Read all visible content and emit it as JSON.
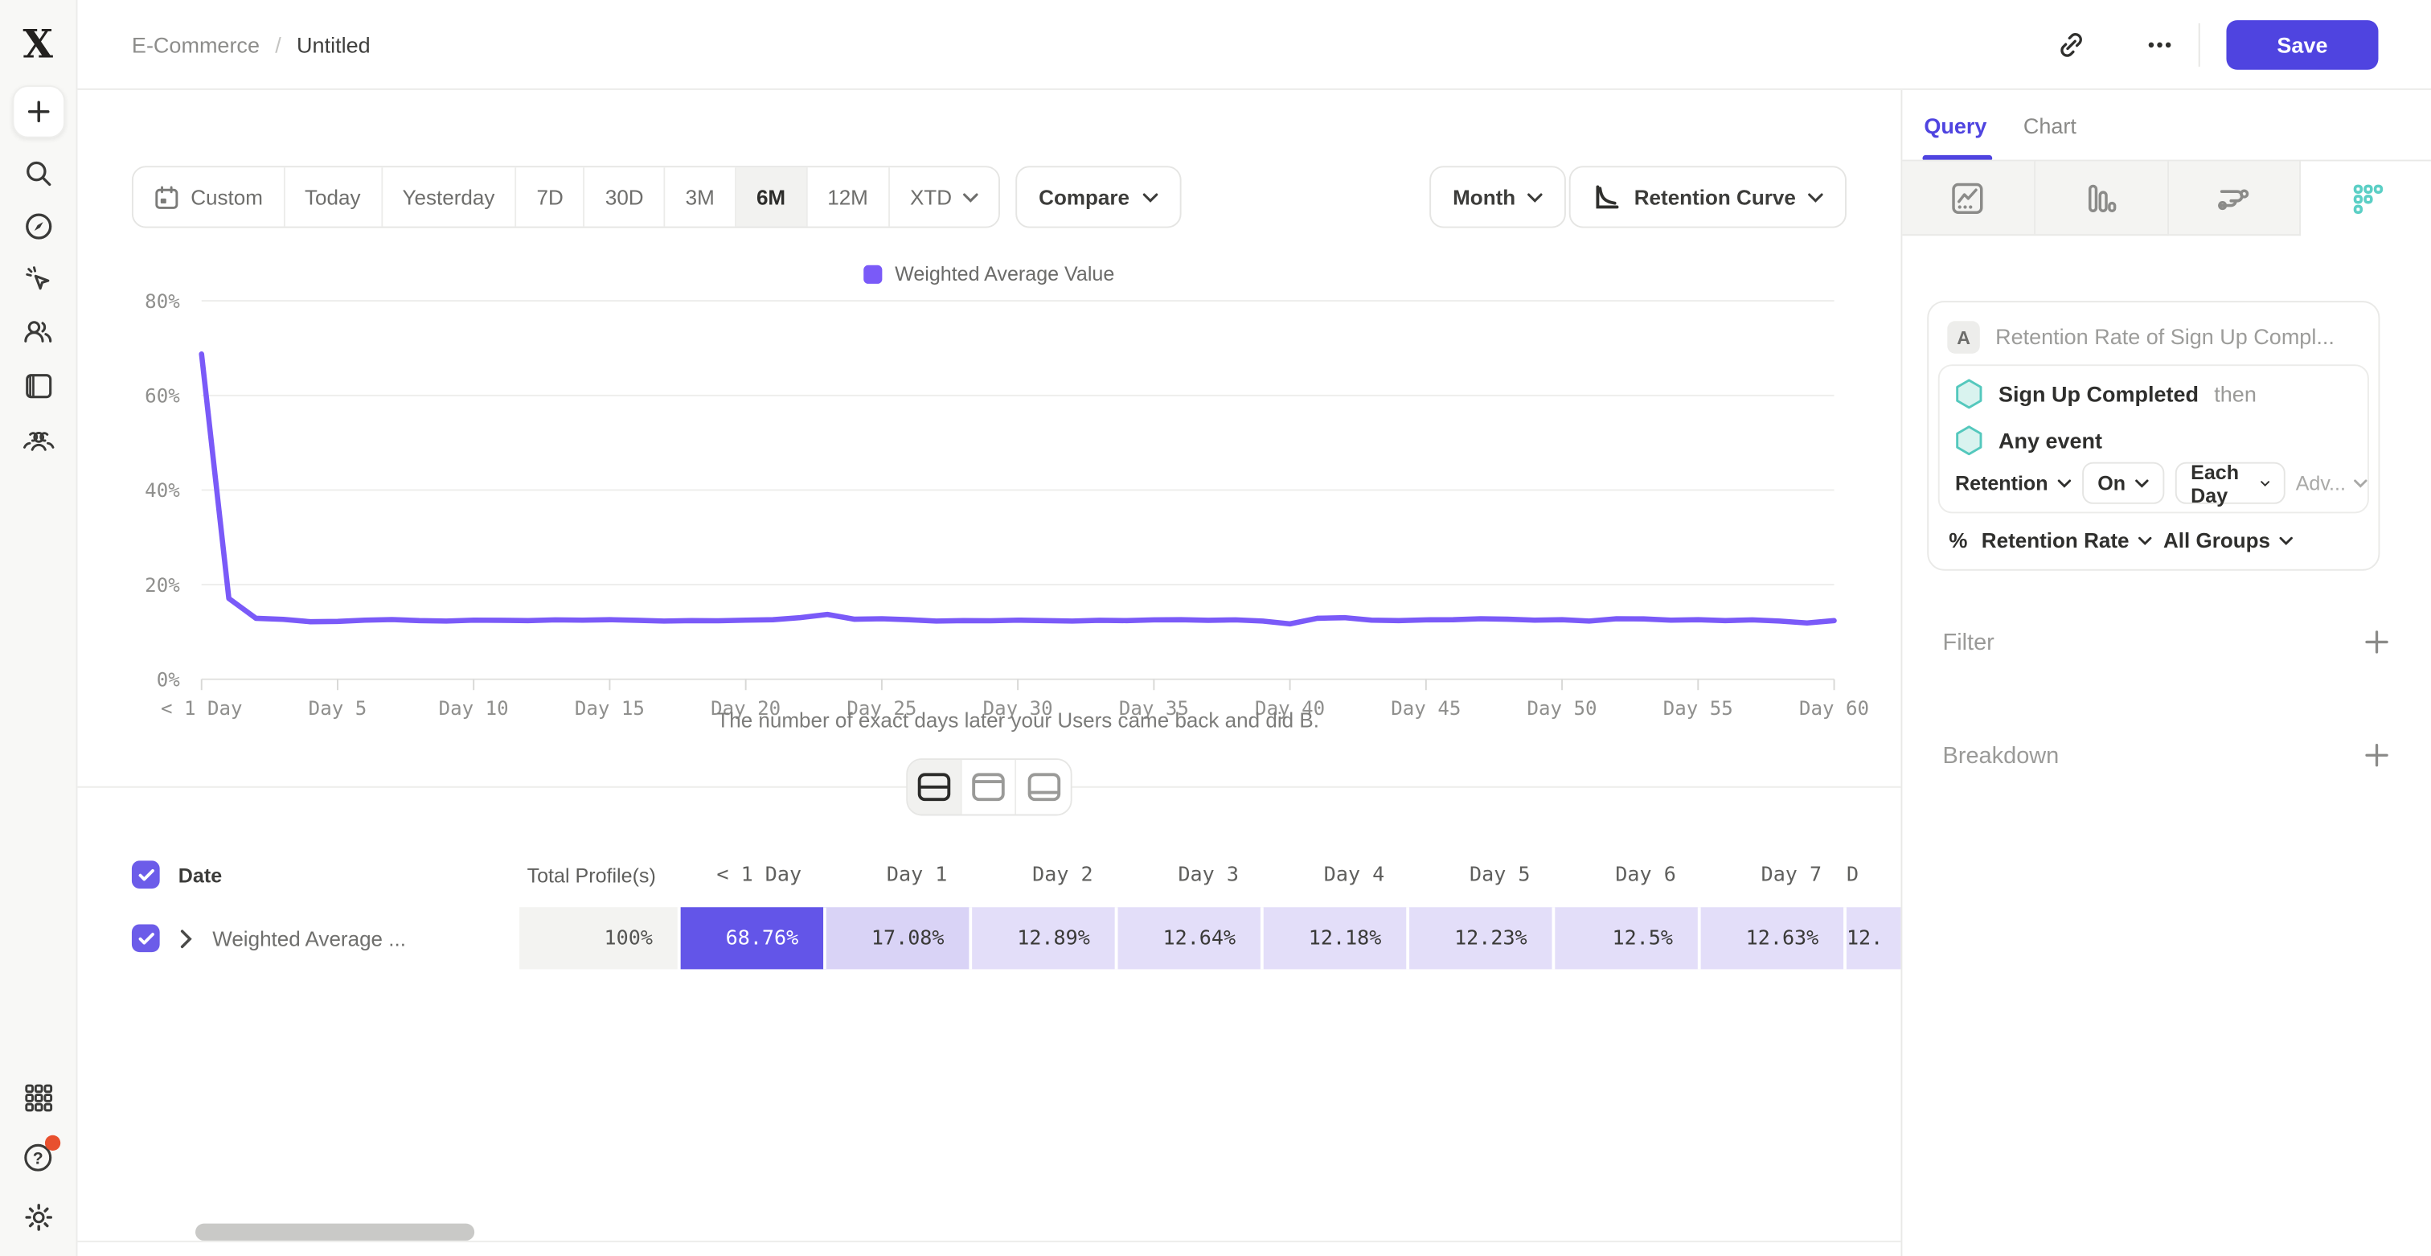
{
  "breadcrumb": {
    "project": "E-Commerce",
    "separator": "/",
    "page": "Untitled"
  },
  "topbar": {
    "save_label": "Save"
  },
  "sidebar": {
    "icons": [
      "mixpanel-logo",
      "create-plus",
      "search",
      "discover-compass",
      "events-cursor",
      "users",
      "boards",
      "cohorts-group",
      "apps-grid",
      "help",
      "settings-gear"
    ]
  },
  "toolbar": {
    "ranges": [
      {
        "label": "Custom"
      },
      {
        "label": "Today"
      },
      {
        "label": "Yesterday"
      },
      {
        "label": "7D"
      },
      {
        "label": "30D"
      },
      {
        "label": "3M"
      },
      {
        "label": "6M",
        "selected": true
      },
      {
        "label": "12M"
      },
      {
        "label": "XTD"
      }
    ],
    "compare_label": "Compare",
    "granularity_label": "Month",
    "chart_type_label": "Retention Curve"
  },
  "chart_data": {
    "type": "line",
    "legend": [
      {
        "label": "Weighted Average Value",
        "color": "#7a5af8"
      }
    ],
    "ylim": [
      0,
      80
    ],
    "yticks": [
      0,
      20,
      40,
      60,
      80
    ],
    "ytick_suffix": "%",
    "xticks": [
      {
        "day": 0,
        "label": "< 1 Day"
      },
      {
        "day": 5,
        "label": "Day 5"
      },
      {
        "day": 10,
        "label": "Day 10"
      },
      {
        "day": 15,
        "label": "Day 15"
      },
      {
        "day": 20,
        "label": "Day 20"
      },
      {
        "day": 25,
        "label": "Day 25"
      },
      {
        "day": 30,
        "label": "Day 30"
      },
      {
        "day": 35,
        "label": "Day 35"
      },
      {
        "day": 40,
        "label": "Day 40"
      },
      {
        "day": 45,
        "label": "Day 45"
      },
      {
        "day": 50,
        "label": "Day 50"
      },
      {
        "day": 55,
        "label": "Day 55"
      },
      {
        "day": 60,
        "label": "Day 60"
      }
    ],
    "x_start_day": 0,
    "values": [
      68.76,
      17.08,
      12.89,
      12.64,
      12.18,
      12.23,
      12.5,
      12.63,
      12.4,
      12.3,
      12.5,
      12.45,
      12.4,
      12.55,
      12.5,
      12.6,
      12.45,
      12.3,
      12.4,
      12.35,
      12.5,
      12.6,
      13.0,
      13.7,
      12.7,
      12.8,
      12.6,
      12.3,
      12.4,
      12.35,
      12.5,
      12.4,
      12.3,
      12.45,
      12.4,
      12.55,
      12.6,
      12.45,
      12.55,
      12.3,
      11.7,
      12.9,
      13.0,
      12.5,
      12.4,
      12.55,
      12.6,
      12.8,
      12.7,
      12.5,
      12.6,
      12.3,
      12.8,
      12.75,
      12.5,
      12.6,
      12.4,
      12.55,
      12.3,
      11.9,
      12.4
    ],
    "xlabel_caption": "The number of exact days later your Users came back and did B."
  },
  "layout_toggle": {
    "options": [
      "split-view",
      "chart-only-view",
      "table-only-view"
    ],
    "selected": "split-view"
  },
  "table": {
    "columns": [
      "Date",
      "Total Profile(s)",
      "< 1 Day",
      "Day 1",
      "Day 2",
      "Day 3",
      "Day 4",
      "Day 5",
      "Day 6",
      "Day 7",
      "D"
    ],
    "rows": [
      {
        "checked": true,
        "label": "Weighted Average ...",
        "values": [
          "100%",
          "68.76%",
          "17.08%",
          "12.89%",
          "12.64%",
          "12.18%",
          "12.23%",
          "12.5%",
          "12.63%",
          "12."
        ]
      }
    ]
  },
  "right_panel": {
    "tabs": [
      {
        "label": "Query",
        "active": true
      },
      {
        "label": "Chart",
        "active": false
      }
    ],
    "report_icons": [
      "insights-icon",
      "funnels-icon",
      "flows-icon",
      "retention-icon"
    ],
    "selected_report": "retention-icon",
    "query": {
      "step_badge": "A",
      "step_title": "Retention Rate of Sign Up Compl...",
      "first_event": "Sign Up Completed",
      "first_event_suffix": "then",
      "return_event": "Any event",
      "retention_label": "Retention",
      "on_label": "On",
      "interval_label": "Each Day",
      "advanced_label": "Adv...",
      "measure_symbol": "%",
      "measure_label": "Retention Rate",
      "groups_label": "All Groups"
    },
    "filter": {
      "label": "Filter"
    },
    "breakdown": {
      "label": "Breakdown"
    }
  },
  "colors": {
    "accent_purple": "#4f44e0",
    "line_purple": "#7a5af8",
    "hot_cell": "#6355e8",
    "teal": "#54c8bd",
    "notification_red": "#e8502e"
  }
}
